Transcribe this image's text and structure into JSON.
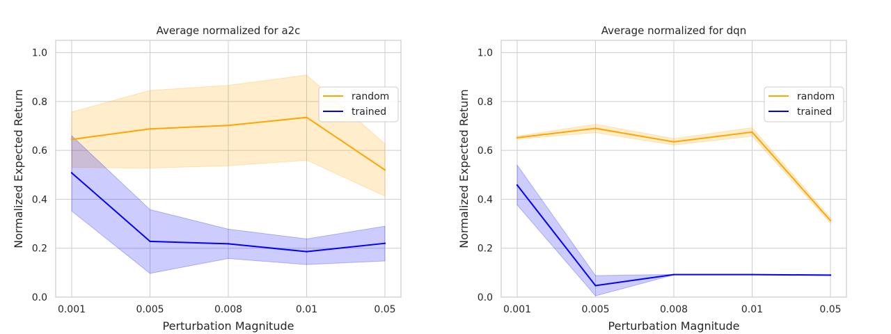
{
  "chart_data": [
    {
      "type": "line",
      "title": "Average normalized for a2c",
      "xlabel": "Perturbation Magnitude",
      "ylabel": "Normalized Expected Return",
      "categories": [
        "0.001",
        "0.005",
        "0.008",
        "0.01",
        "0.05"
      ],
      "ylim": [
        0,
        1.05
      ],
      "yticks": [
        "0.0",
        "0.2",
        "0.4",
        "0.6",
        "0.8",
        "1.0"
      ],
      "grid": true,
      "legend": "upper right",
      "series": [
        {
          "name": "random",
          "color": "#ffa500",
          "band_color": "#ffe9c2",
          "values": [
            0.645,
            0.688,
            0.702,
            0.735,
            0.52
          ],
          "lower": [
            0.53,
            0.528,
            0.537,
            0.56,
            0.413
          ],
          "upper": [
            0.757,
            0.845,
            0.866,
            0.908,
            0.627
          ]
        },
        {
          "name": "trained",
          "color": "#0000ff",
          "band_color": "#c9c9ff",
          "values": [
            0.508,
            0.228,
            0.218,
            0.186,
            0.22
          ],
          "lower": [
            0.352,
            0.097,
            0.158,
            0.133,
            0.148
          ],
          "upper": [
            0.66,
            0.358,
            0.278,
            0.238,
            0.29
          ]
        }
      ]
    },
    {
      "type": "line",
      "title": "Average normalized for dqn",
      "xlabel": "Perturbation Magnitude",
      "ylabel": "Normalized Expected Return",
      "categories": [
        "0.001",
        "0.005",
        "0.008",
        "0.01",
        "0.05"
      ],
      "ylim": [
        0,
        1.05
      ],
      "yticks": [
        "0.0",
        "0.2",
        "0.4",
        "0.6",
        "0.8",
        "1.0"
      ],
      "grid": true,
      "legend": "upper right",
      "series": [
        {
          "name": "random",
          "color": "#ffa500",
          "band_color": "#ffe9c2",
          "values": [
            0.652,
            0.69,
            0.635,
            0.675,
            0.313
          ],
          "lower": [
            0.646,
            0.673,
            0.622,
            0.658,
            0.302
          ],
          "upper": [
            0.658,
            0.707,
            0.648,
            0.693,
            0.324
          ]
        },
        {
          "name": "trained",
          "color": "#0000ff",
          "band_color": "#c9c9ff",
          "values": [
            0.458,
            0.047,
            0.092,
            0.092,
            0.09
          ],
          "lower": [
            0.377,
            0.005,
            0.091,
            0.091,
            0.089
          ],
          "upper": [
            0.54,
            0.088,
            0.093,
            0.093,
            0.091
          ]
        }
      ]
    }
  ]
}
